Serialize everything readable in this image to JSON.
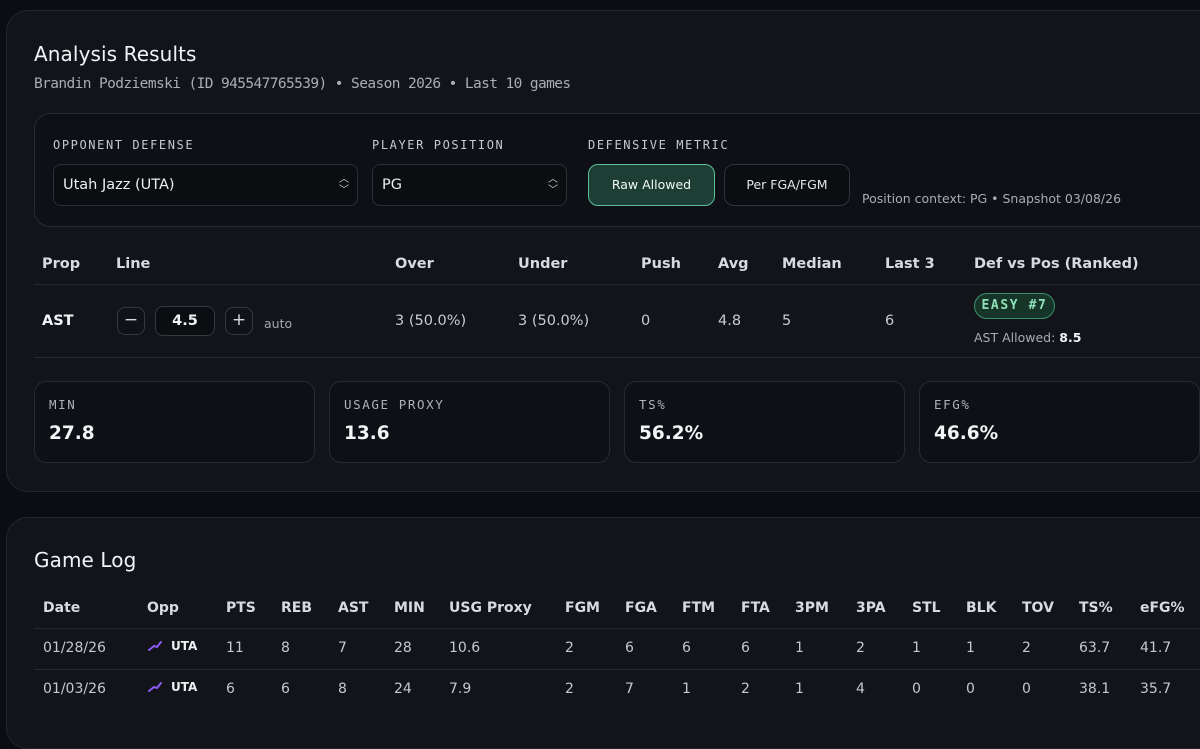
{
  "results": {
    "title": "Analysis Results",
    "subtitle": "Brandin Podziemski (ID 945547765539) • Season 2026 • Last 10 games",
    "controls": {
      "opponent_label": "OPPONENT DEFENSE",
      "opponent_value": "Utah Jazz (UTA)",
      "position_label": "PLAYER POSITION",
      "position_value": "PG",
      "metric_label": "DEFENSIVE METRIC",
      "metric_raw": "Raw Allowed",
      "metric_per": "Per FGA/FGM",
      "context": "Position context: PG • Snapshot 03/08/26"
    },
    "table": {
      "headers": [
        "Prop",
        "Line",
        "Over",
        "Under",
        "Push",
        "Avg",
        "Median",
        "Last 3",
        "Def vs Pos (Ranked)"
      ],
      "row": {
        "prop": "AST",
        "line": "4.5",
        "minus": "−",
        "plus": "+",
        "auto": "auto",
        "over": "3 (50.0%)",
        "under": "3 (50.0%)",
        "push": "0",
        "avg": "4.8",
        "median": "5",
        "last3": "6",
        "badge": "EASY #7",
        "allowed_label": "AST Allowed:",
        "allowed_value": "8.5"
      }
    },
    "stats": [
      {
        "label": "MIN",
        "value": "27.8"
      },
      {
        "label": "USAGE PROXY",
        "value": "13.6"
      },
      {
        "label": "TS%",
        "value": "56.2%"
      },
      {
        "label": "EFG%",
        "value": "46.6%"
      }
    ]
  },
  "gamelog": {
    "title": "Game Log",
    "headers": [
      "Date",
      "Opp",
      "PTS",
      "REB",
      "AST",
      "MIN",
      "USG Proxy",
      "FGM",
      "FGA",
      "FTM",
      "FTA",
      "3PM",
      "3PA",
      "STL",
      "BLK",
      "TOV",
      "TS%",
      "eFG%"
    ],
    "rows": [
      {
        "date": "01/28/26",
        "opp": "UTA",
        "pts": "11",
        "reb": "8",
        "ast": "7",
        "min": "28",
        "usg": "10.6",
        "fgm": "2",
        "fga": "6",
        "ftm": "6",
        "fta": "6",
        "tpm": "1",
        "tpa": "2",
        "stl": "1",
        "blk": "1",
        "tov": "2",
        "ts": "63.7",
        "efg": "41.7"
      },
      {
        "date": "01/03/26",
        "opp": "UTA",
        "pts": "6",
        "reb": "6",
        "ast": "8",
        "min": "24",
        "usg": "7.9",
        "fgm": "2",
        "fga": "7",
        "ftm": "1",
        "fta": "2",
        "tpm": "1",
        "tpa": "4",
        "stl": "0",
        "blk": "0",
        "tov": "0",
        "ts": "38.1",
        "efg": "35.7"
      }
    ],
    "team_icon": "jazz-note-icon",
    "team_icon_color": "#8b5cf6"
  },
  "colors": {
    "background": "#0b0d12",
    "card": "#12141a",
    "accent_green": "#5bbf9a",
    "badge_text": "#8fe2b8"
  }
}
